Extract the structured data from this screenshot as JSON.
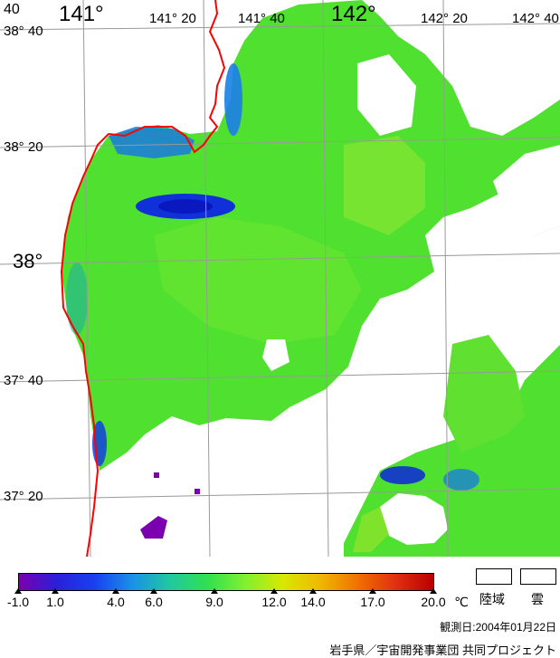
{
  "map": {
    "lon_labels": [
      "141°",
      "141° 20",
      "141° 40",
      "142°",
      "142° 20",
      "142° 40"
    ],
    "lon_corner": "40",
    "lat_labels": [
      "38° 40",
      "38° 20",
      "38°",
      "37° 40",
      "37° 20"
    ],
    "colors": {
      "land": "#ffffff",
      "cloud": "#ffffff",
      "coastline": "#ff0000",
      "grid": "#999999"
    }
  },
  "scale": {
    "unit": "℃",
    "ticks": [
      "-1.0",
      "1.0",
      "4.0",
      "6.0",
      "9.0",
      "12.0",
      "14.0",
      "17.0",
      "20.0"
    ],
    "gradient_colors": [
      "#7a00b0",
      "#2a20d8",
      "#1840f0",
      "#1a90e8",
      "#20c8a0",
      "#30e050",
      "#80f030",
      "#d8e800",
      "#f0b800",
      "#f07000",
      "#e03010",
      "#b80000"
    ]
  },
  "legend": {
    "land_label": "陸域",
    "cloud_label": "雲"
  },
  "footer": {
    "observation_date": "観測日:2004年01月22日",
    "credit": "岩手県／宇宙開発事業団 共同プロジェクト"
  }
}
